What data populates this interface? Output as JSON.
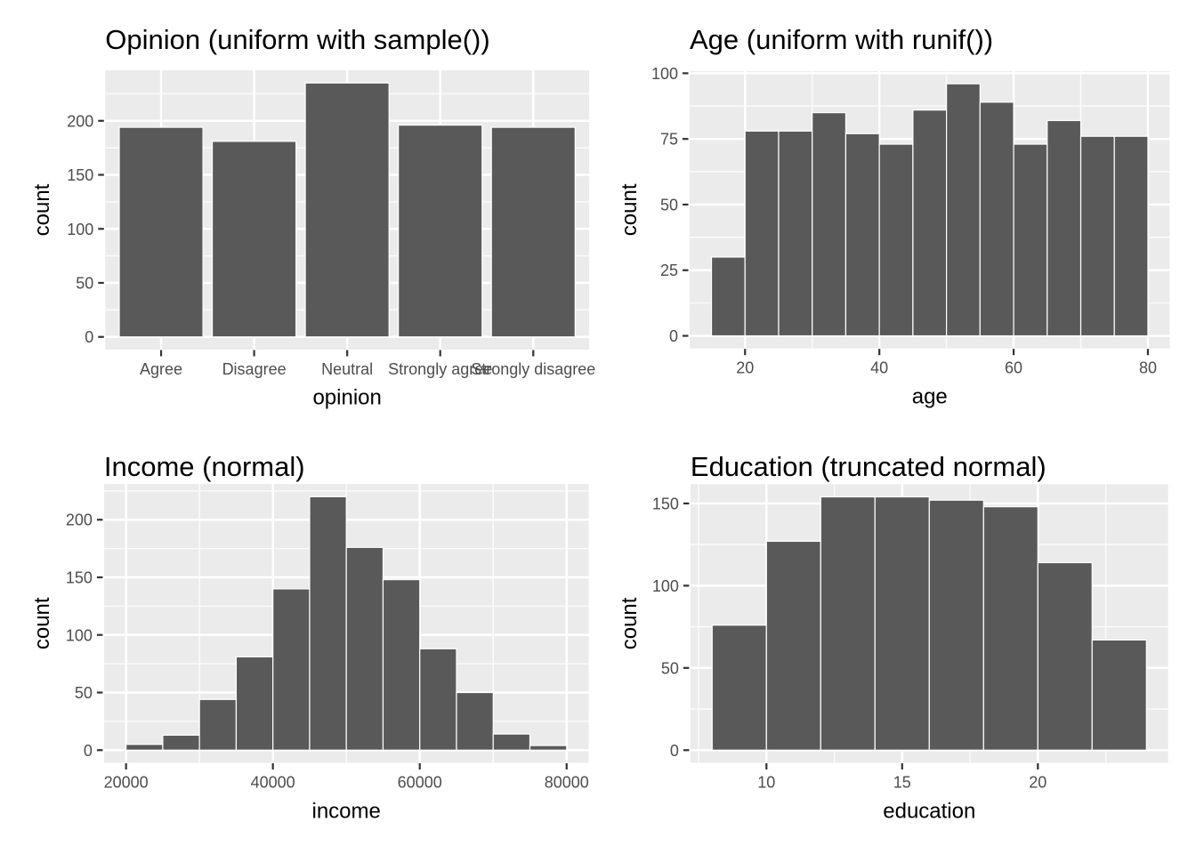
{
  "style": {
    "panel_bg": "#EBEBEB",
    "grid_major_color": "#FFFFFF",
    "grid_minor_color": "#FFFFFF",
    "bar_fill": "#595959",
    "bar_stroke": "#FFFFFF",
    "tick_mark_color": "#333333",
    "axis_text_color": "#4D4D4D",
    "title_color": "#000000"
  },
  "chart_data": [
    {
      "id": "opinion",
      "type": "bar",
      "title": "Opinion (uniform with sample())",
      "xlabel": "opinion",
      "ylabel": "count",
      "categories": [
        "Agree",
        "Disagree",
        "Neutral",
        "Strongly agree",
        "Strongly disagree"
      ],
      "values": [
        194,
        181,
        235,
        196,
        194
      ],
      "yticks": [
        0,
        50,
        100,
        150,
        200
      ],
      "yminor": [
        25,
        75,
        125,
        175,
        225
      ],
      "ylim": [
        0,
        235
      ],
      "grid": true,
      "legend": "none"
    },
    {
      "id": "age",
      "type": "histogram",
      "title": "Age (uniform with runif())",
      "xlabel": "age",
      "ylabel": "count",
      "bin_start": 15,
      "bin_width": 5,
      "values": [
        30,
        78,
        78,
        85,
        77,
        73,
        86,
        96,
        89,
        73,
        82,
        76,
        76
      ],
      "xrange": [
        15,
        80
      ],
      "xticks": [
        20,
        40,
        60,
        80
      ],
      "xminor": [
        30,
        50,
        70
      ],
      "yticks": [
        0,
        25,
        50,
        75,
        100
      ],
      "yminor": [
        12.5,
        37.5,
        62.5,
        87.5
      ],
      "ylim": [
        0,
        96
      ],
      "grid": true,
      "legend": "none"
    },
    {
      "id": "income",
      "type": "histogram",
      "title": "Income (normal)",
      "xlabel": "income",
      "ylabel": "count",
      "bin_start": 20000,
      "bin_width": 5000,
      "values": [
        5,
        13,
        44,
        81,
        140,
        220,
        176,
        148,
        88,
        50,
        14,
        4
      ],
      "xrange": [
        20000,
        80000
      ],
      "xticks": [
        20000,
        40000,
        60000,
        80000
      ],
      "xtick_labels": [
        "20000",
        "40000",
        "60000",
        "80000"
      ],
      "xminor": [
        30000,
        50000,
        70000
      ],
      "yticks": [
        0,
        50,
        100,
        150,
        200
      ],
      "yminor": [
        25,
        75,
        125,
        175,
        225
      ],
      "ylim": [
        0,
        220
      ],
      "grid": true,
      "legend": "none"
    },
    {
      "id": "education",
      "type": "histogram",
      "title": "Education (truncated normal)",
      "xlabel": "education",
      "ylabel": "count",
      "bin_start": 8,
      "bin_width": 2,
      "values": [
        76,
        127,
        154,
        154,
        152,
        148,
        114,
        67
      ],
      "xrange": [
        8,
        24
      ],
      "xticks": [
        10,
        15,
        20
      ],
      "xminor": [
        7.5,
        12.5,
        17.5,
        22.5
      ],
      "yticks": [
        0,
        50,
        100,
        150
      ],
      "yminor": [
        25,
        75,
        125
      ],
      "ylim": [
        0,
        154
      ],
      "grid": true,
      "legend": "none"
    }
  ]
}
